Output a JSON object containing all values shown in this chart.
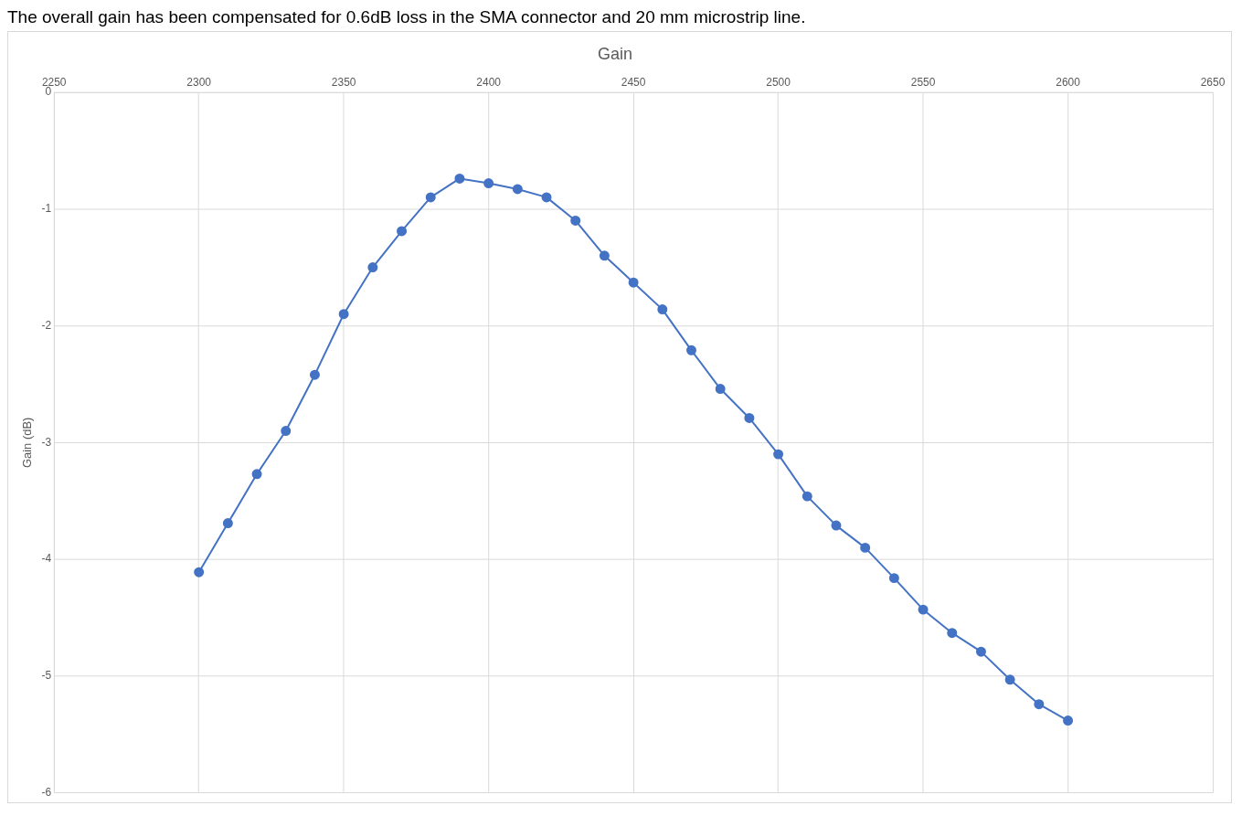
{
  "chart_data": {
    "type": "line",
    "title": "Gain",
    "ylabel": "Gain (dB)",
    "annotations": [
      "The overall gain has been compensated for 0.6dB loss in the SMA connector and 20 mm microstrip line."
    ],
    "x": [
      2300,
      2310,
      2320,
      2330,
      2340,
      2350,
      2360,
      2370,
      2380,
      2390,
      2400,
      2410,
      2420,
      2430,
      2440,
      2450,
      2460,
      2470,
      2480,
      2490,
      2500,
      2510,
      2520,
      2530,
      2540,
      2550,
      2560,
      2570,
      2580,
      2590,
      2600
    ],
    "series": [
      {
        "color": "#4472c4",
        "values": [
          -4.11,
          -3.69,
          -3.27,
          -2.9,
          -2.42,
          -1.9,
          -1.5,
          -1.19,
          -0.9,
          -0.74,
          -0.78,
          -0.83,
          -0.9,
          -1.1,
          -1.4,
          -1.63,
          -1.86,
          -2.21,
          -2.54,
          -2.79,
          -3.1,
          -3.46,
          -3.71,
          -3.9,
          -4.16,
          -4.43,
          -4.63,
          -4.79,
          -5.03,
          -5.24,
          -5.38
        ]
      }
    ],
    "xlim": [
      2250,
      2650
    ],
    "xticks": [
      2250,
      2300,
      2350,
      2400,
      2450,
      2500,
      2550,
      2600,
      2650
    ],
    "ylim": [
      -6,
      0
    ],
    "yticks": [
      -6,
      -5,
      -4,
      -3,
      -2,
      -1,
      0
    ],
    "grid": true,
    "legend": false,
    "marker": "circle",
    "line_style": "solid"
  }
}
